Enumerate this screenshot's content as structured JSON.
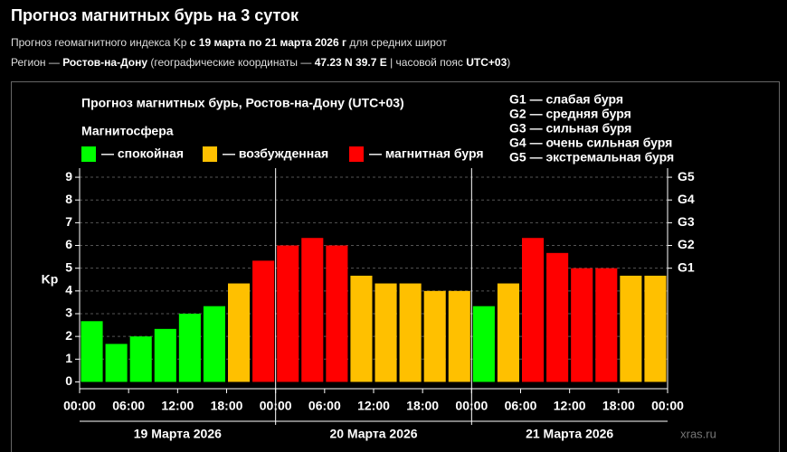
{
  "header": {
    "title": "Прогноз магнитных бурь на 3 суток",
    "line1": [
      {
        "text": "Прогноз геомагнитного индекса Kp ",
        "bold": false
      },
      {
        "text": "с 19 марта по 21 марта 2026 г",
        "bold": true
      },
      {
        "text": " для средних широт",
        "bold": false
      }
    ],
    "line2": [
      {
        "text": "Регион — ",
        "bold": false
      },
      {
        "text": "Ростов-на-Дону",
        "bold": true
      },
      {
        "text": " (географические координаты — ",
        "bold": false
      },
      {
        "text": "47.23 N 39.7 E",
        "bold": true
      },
      {
        "text": " | часовой пояс ",
        "bold": false
      },
      {
        "text": "UTC+03",
        "bold": true
      },
      {
        "text": ")",
        "bold": false
      }
    ]
  },
  "chart_data": {
    "type": "bar",
    "title": "Прогноз магнитных бурь, Ростов-на-Дону (UTC+03)",
    "legend_title": "Магнитосфера",
    "legend": [
      {
        "label": "— спокойная",
        "color": "#00ff00"
      },
      {
        "label": "— возбужденная",
        "color": "#ffc000"
      },
      {
        "label": "— магнитная буря",
        "color": "#ff0000"
      }
    ],
    "storm_levels": [
      "G1 — слабая буря",
      "G2 — средняя буря",
      "G3 — сильная буря",
      "G4 — очень сильная буря",
      "G5 — экстремальная буря"
    ],
    "y_label": "Kp",
    "x": [
      0,
      3,
      6,
      9,
      12,
      15,
      18,
      21,
      24,
      27,
      30,
      33,
      36,
      39,
      42,
      45,
      48,
      51,
      54,
      57,
      60,
      63,
      66,
      69
    ],
    "values": [
      2.67,
      1.67,
      2.0,
      2.33,
      3.0,
      3.33,
      4.33,
      5.33,
      6.0,
      6.33,
      6.0,
      4.67,
      4.33,
      4.33,
      4.0,
      4.0,
      3.33,
      4.33,
      6.33,
      5.67,
      5.0,
      5.0,
      4.67,
      4.67
    ],
    "colors": [
      "#00ff00",
      "#00ff00",
      "#00ff00",
      "#00ff00",
      "#00ff00",
      "#00ff00",
      "#ffc000",
      "#ff0000",
      "#ff0000",
      "#ff0000",
      "#ff0000",
      "#ffc000",
      "#ffc000",
      "#ffc000",
      "#ffc000",
      "#ffc000",
      "#00ff00",
      "#ffc000",
      "#ff0000",
      "#ff0000",
      "#ff0000",
      "#ff0000",
      "#ffc000",
      "#ffc000"
    ],
    "xlim": [
      0,
      72
    ],
    "xticks": [
      {
        "value": 0,
        "label": "00:00"
      },
      {
        "value": 6,
        "label": "06:00"
      },
      {
        "value": 12,
        "label": "12:00"
      },
      {
        "value": 18,
        "label": "18:00"
      },
      {
        "value": 24,
        "label": "00:00"
      },
      {
        "value": 30,
        "label": "06:00"
      },
      {
        "value": 36,
        "label": "12:00"
      },
      {
        "value": 42,
        "label": "18:00"
      },
      {
        "value": 48,
        "label": "00:00"
      },
      {
        "value": 54,
        "label": "06:00"
      },
      {
        "value": 60,
        "label": "12:00"
      },
      {
        "value": 66,
        "label": "18:00"
      },
      {
        "value": 72,
        "label": "00:00"
      }
    ],
    "days": [
      "19 Марта 2026",
      "20 Марта 2026",
      "21 Марта 2026"
    ],
    "ylim": [
      -0.3,
      9.4
    ],
    "yticks": [
      0,
      1,
      2,
      3,
      4,
      5,
      6,
      7,
      8,
      9
    ],
    "y2lim": [
      -0.3,
      9.4
    ],
    "y2ticks": [
      {
        "value": 5,
        "label": "G1"
      },
      {
        "value": 6,
        "label": "G2"
      },
      {
        "value": 7,
        "label": "G3"
      },
      {
        "value": 8,
        "label": "G4"
      },
      {
        "value": 9,
        "label": "G5"
      }
    ],
    "grid": true,
    "watermark": "xras.ru"
  }
}
